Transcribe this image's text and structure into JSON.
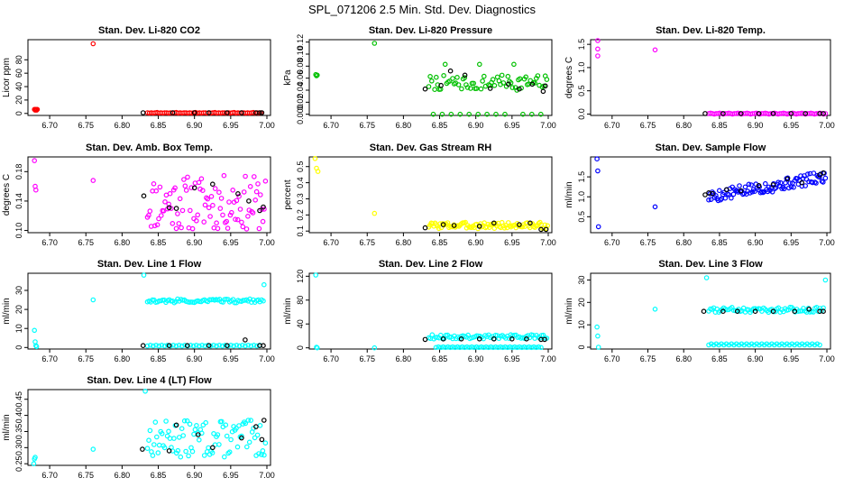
{
  "figure_title": "SPL_071206  2.5 Min. Std. Dev. Diagnostics",
  "x_tick_labels": [
    "6.70",
    "6.75",
    "6.80",
    "6.85",
    "6.90",
    "6.95",
    "7.00"
  ],
  "colors": {
    "red": "#ff0000",
    "green": "#00c000",
    "magenta": "#ff00ff",
    "yellow": "#ffff00",
    "blue": "#0000ff",
    "cyan": "#00ffff",
    "black": "#000000"
  },
  "chart_data": [
    {
      "type": "scatter",
      "id": "co2",
      "title": "Stan. Dev. Li-820 CO2",
      "xlabel": "",
      "ylabel": "Licor ppm",
      "xlim": [
        6.67,
        7.005
      ],
      "ylim": [
        -3,
        110
      ],
      "yticks": [
        0,
        20,
        40,
        60,
        80
      ],
      "yticklabels": [
        "0",
        "20",
        "40",
        "60",
        "80"
      ],
      "color": "red",
      "series": [
        {
          "name": "early",
          "x": [
            6.679,
            6.68,
            6.681,
            6.682,
            6.683,
            6.76
          ],
          "y": [
            6,
            5,
            6,
            5,
            6,
            104
          ]
        },
        {
          "name": "dense",
          "x_from": 6.835,
          "x_to": 6.992,
          "count": 60,
          "y_values": [
            1,
            0.5,
            1,
            0.5,
            1,
            1.5,
            0.5,
            1,
            0.5,
            1
          ]
        },
        {
          "name": "black",
          "color": "black",
          "x": [
            6.829,
            6.87,
            6.9,
            6.92,
            6.945,
            6.965,
            6.985,
            6.99,
            6.993
          ],
          "y": [
            1,
            1,
            1,
            1,
            1,
            1,
            1,
            1,
            1
          ]
        }
      ]
    },
    {
      "type": "scatter",
      "id": "pressure",
      "title": "Stan. Dev. Li-820 Pressure",
      "xlabel": "",
      "ylabel": "kPa",
      "xlim": [
        6.67,
        7.005
      ],
      "ylim": [
        -0.002,
        0.124
      ],
      "yticks": [
        0,
        0.02,
        0.04,
        0.06,
        0.08,
        0.1,
        0.12
      ],
      "yticklabels": [
        "0.000",
        "0.02",
        "0.04",
        "0.06",
        "0.08",
        "0.10",
        "0.12"
      ],
      "color": "green",
      "series": [
        {
          "name": "early",
          "x": [
            6.679,
            6.68,
            6.681,
            6.76
          ],
          "y": [
            0.066,
            0.064,
            0.065,
            0.118
          ]
        },
        {
          "name": "main",
          "x_from": 6.835,
          "x_to": 6.998,
          "count": 80,
          "seed": 7,
          "y_min": 0.04,
          "y_max": 0.065,
          "zero_every": 6,
          "high": 0.083
        },
        {
          "name": "black",
          "color": "black",
          "x": [
            6.83,
            6.852,
            6.865,
            6.885,
            6.92,
            6.945,
            6.96,
            6.978,
            6.993,
            6.996
          ],
          "y": [
            0.042,
            0.048,
            0.072,
            0.065,
            0.043,
            0.05,
            0.042,
            0.05,
            0.038,
            0.047
          ]
        }
      ]
    },
    {
      "type": "scatter",
      "id": "temp",
      "title": "Stan. Dev. Li-820 Temp.",
      "xlabel": "",
      "ylabel": "degrees C",
      "xlim": [
        6.67,
        7.005
      ],
      "ylim": [
        -0.03,
        1.6
      ],
      "yticks": [
        0,
        0.5,
        1.0,
        1.5
      ],
      "yticklabels": [
        "0.0",
        "0.5",
        "1.0",
        "1.5"
      ],
      "color": "magenta",
      "series": [
        {
          "name": "early",
          "x": [
            6.68,
            6.68,
            6.68,
            6.76
          ],
          "y": [
            1.58,
            1.4,
            1.25,
            1.38
          ]
        },
        {
          "name": "dense",
          "x_from": 6.835,
          "x_to": 6.998,
          "count": 65,
          "y_values": [
            0.01,
            0.02,
            0.01,
            0.0,
            0.01
          ]
        },
        {
          "name": "black",
          "color": "black",
          "x": [
            6.83,
            6.855,
            6.88,
            6.905,
            6.925,
            6.95,
            6.97,
            6.99,
            6.995
          ],
          "y": [
            0.01,
            0.01,
            0.01,
            0.01,
            0.01,
            0.01,
            0.01,
            0.01,
            0.01
          ]
        }
      ]
    },
    {
      "type": "scatter",
      "id": "boxtemp",
      "title": "Stan. Dev. Amb. Box Temp.",
      "xlabel": "",
      "ylabel": "degrees C",
      "xlim": [
        6.67,
        7.005
      ],
      "ylim": [
        0.097,
        0.2
      ],
      "yticks": [
        0.1,
        0.14,
        0.18
      ],
      "yticklabels": [
        "0.10",
        "0.14",
        "0.18"
      ],
      "color": "magenta",
      "series": [
        {
          "name": "early",
          "x": [
            6.679,
            6.68,
            6.681,
            6.76
          ],
          "y": [
            0.195,
            0.16,
            0.155,
            0.168
          ]
        },
        {
          "name": "main",
          "x_from": 6.835,
          "x_to": 6.998,
          "count": 95,
          "seed": 11,
          "y_min": 0.1,
          "y_max": 0.175
        },
        {
          "name": "black",
          "color": "black",
          "x": [
            6.83,
            6.865,
            6.875,
            6.9,
            6.925,
            6.96,
            6.975,
            6.99,
            6.995
          ],
          "y": [
            0.147,
            0.131,
            0.13,
            0.158,
            0.163,
            0.15,
            0.14,
            0.127,
            0.132
          ]
        }
      ]
    },
    {
      "type": "scatter",
      "id": "rh",
      "title": "Stan. Dev. Gas Stream RH",
      "xlabel": "",
      "ylabel": "percent",
      "xlim": [
        6.67,
        7.005
      ],
      "ylim": [
        0.09,
        0.56
      ],
      "yticks": [
        0.1,
        0.2,
        0.3,
        0.4,
        0.5
      ],
      "yticklabels": [
        "0.1",
        "0.2",
        "0.3",
        "0.4",
        "0.5"
      ],
      "color": "yellow",
      "series": [
        {
          "name": "early",
          "x": [
            6.678,
            6.68,
            6.682,
            6.76
          ],
          "y": [
            0.55,
            0.49,
            0.47,
            0.21
          ]
        },
        {
          "name": "main",
          "x_from": 6.835,
          "x_to": 6.999,
          "count": 95,
          "seed": 3,
          "y_min": 0.115,
          "y_max": 0.155
        },
        {
          "name": "black",
          "color": "black",
          "x": [
            6.83,
            6.855,
            6.87,
            6.905,
            6.925,
            6.96,
            6.975,
            6.99,
            6.997
          ],
          "y": [
            0.12,
            0.14,
            0.135,
            0.13,
            0.15,
            0.14,
            0.15,
            0.11,
            0.11
          ]
        }
      ]
    },
    {
      "type": "scatter",
      "id": "sampleflow",
      "title": "Stan. Dev. Sample Flow",
      "xlabel": "",
      "ylabel": "ml/min",
      "xlim": [
        6.67,
        7.005
      ],
      "ylim": [
        0.1,
        2.0
      ],
      "yticks": [
        0.5,
        1.0,
        1.5
      ],
      "yticklabels": [
        "0.5",
        "1.0",
        "1.5"
      ],
      "color": "blue",
      "series": [
        {
          "name": "early",
          "x": [
            6.679,
            6.68,
            6.681,
            6.76
          ],
          "y": [
            1.95,
            1.65,
            0.25,
            0.75
          ]
        },
        {
          "name": "main",
          "x_from": 6.835,
          "x_to": 6.998,
          "count": 100,
          "seed": 5,
          "y_trend_from": 1.0,
          "y_trend_to": 1.5,
          "jitter": 0.15
        },
        {
          "name": "black",
          "color": "black",
          "x": [
            6.83,
            6.835,
            6.84,
            6.86,
            6.88,
            6.905,
            6.925,
            6.945,
            6.965,
            6.99,
            6.995
          ],
          "y": [
            1.05,
            1.1,
            1.08,
            1.18,
            1.15,
            1.28,
            1.3,
            1.45,
            1.35,
            1.55,
            1.6
          ]
        }
      ]
    },
    {
      "type": "scatter",
      "id": "line1",
      "title": "Stan. Dev. Line 1 Flow",
      "xlabel": "",
      "ylabel": "ml/min",
      "xlim": [
        6.67,
        7.005
      ],
      "ylim": [
        -0.8,
        39
      ],
      "yticks": [
        0,
        10,
        20,
        30
      ],
      "yticklabels": [
        "0",
        "10",
        "20",
        "30"
      ],
      "color": "cyan",
      "series": [
        {
          "name": "early",
          "x": [
            6.679,
            6.68,
            6.681,
            6.682,
            6.76,
            6.83,
            6.996
          ],
          "y": [
            9,
            3,
            1,
            0.5,
            25,
            38,
            33
          ]
        },
        {
          "name": "band_high",
          "x_from": 6.835,
          "x_to": 6.995,
          "count": 70,
          "seed": 2,
          "y_min": 23.5,
          "y_max": 25.5
        },
        {
          "name": "band_low",
          "x_from": 6.835,
          "x_to": 6.99,
          "count": 40,
          "y_values": [
            0.8,
            1.2
          ]
        },
        {
          "name": "black",
          "color": "black",
          "x": [
            6.829,
            6.865,
            6.89,
            6.92,
            6.945,
            6.97,
            6.99,
            6.995
          ],
          "y": [
            1,
            1,
            1,
            1,
            1,
            4,
            1,
            1
          ]
        }
      ]
    },
    {
      "type": "scatter",
      "id": "line2",
      "title": "Stan. Dev. Line 2 Flow",
      "xlabel": "",
      "ylabel": "ml/min",
      "xlim": [
        6.67,
        7.005
      ],
      "ylim": [
        -2,
        125
      ],
      "yticks": [
        0,
        40,
        80,
        120
      ],
      "yticklabels": [
        "0",
        "40",
        "80",
        "120"
      ],
      "color": "cyan",
      "series": [
        {
          "name": "early",
          "x": [
            6.679,
            6.68,
            6.681,
            6.76
          ],
          "y": [
            122,
            1,
            0,
            0
          ]
        },
        {
          "name": "band_high",
          "x_from": 6.835,
          "x_to": 6.998,
          "count": 70,
          "seed": 9,
          "y_min": 15,
          "y_max": 22
        },
        {
          "name": "band_low",
          "x_from": 6.845,
          "x_to": 6.99,
          "count": 45,
          "y_values": [
            0.5,
            1.5
          ]
        },
        {
          "name": "black",
          "color": "black",
          "x": [
            6.83,
            6.855,
            6.88,
            6.905,
            6.925,
            6.95,
            6.97,
            6.99,
            6.995
          ],
          "y": [
            14,
            15,
            15,
            15,
            15,
            15,
            15,
            14,
            14
          ]
        }
      ]
    },
    {
      "type": "scatter",
      "id": "line3",
      "title": "Stan. Dev. Line 3 Flow",
      "xlabel": "",
      "ylabel": "ml/min",
      "xlim": [
        6.67,
        7.005
      ],
      "ylim": [
        -0.8,
        33
      ],
      "yticks": [
        0,
        10,
        20,
        30
      ],
      "yticklabels": [
        "0",
        "10",
        "20",
        "30"
      ],
      "color": "cyan",
      "series": [
        {
          "name": "early",
          "x": [
            6.679,
            6.68,
            6.681,
            6.76,
            6.832,
            6.998
          ],
          "y": [
            9,
            5,
            0,
            17,
            31,
            30
          ]
        },
        {
          "name": "band_high",
          "x_from": 6.835,
          "x_to": 6.995,
          "count": 70,
          "seed": 4,
          "y_min": 15.5,
          "y_max": 18
        },
        {
          "name": "band_low",
          "x_from": 6.835,
          "x_to": 6.99,
          "count": 45,
          "y_values": [
            1,
            1.5
          ]
        },
        {
          "name": "black",
          "color": "black",
          "x": [
            6.828,
            6.855,
            6.875,
            6.9,
            6.925,
            6.955,
            6.975,
            6.99,
            6.995
          ],
          "y": [
            16,
            16,
            16,
            16,
            16,
            16,
            17,
            16,
            16
          ]
        }
      ]
    },
    {
      "type": "scatter",
      "id": "line4",
      "title": "Stan. Dev. Line 4 (LT) Flow",
      "xlabel": "",
      "ylabel": "ml/min",
      "xlim": [
        6.67,
        7.005
      ],
      "ylim": [
        0.245,
        0.48
      ],
      "yticks": [
        0.25,
        0.3,
        0.35,
        0.4,
        0.45
      ],
      "yticklabels": [
        "0.25",
        "0.30",
        "0.35",
        "0.40",
        "0.45"
      ],
      "color": "cyan",
      "series": [
        {
          "name": "early",
          "x": [
            6.678,
            6.679,
            6.68,
            6.76,
            6.832
          ],
          "y": [
            0.25,
            0.265,
            0.27,
            0.295,
            0.475
          ]
        },
        {
          "name": "main",
          "x_from": 6.835,
          "x_to": 6.998,
          "count": 90,
          "seed": 13,
          "y_min": 0.27,
          "y_max": 0.385
        },
        {
          "name": "black",
          "color": "black",
          "x": [
            6.828,
            6.865,
            6.875,
            6.905,
            6.925,
            6.965,
            6.985,
            6.993,
            6.996
          ],
          "y": [
            0.295,
            0.29,
            0.37,
            0.34,
            0.3,
            0.33,
            0.365,
            0.325,
            0.385
          ]
        }
      ]
    }
  ]
}
